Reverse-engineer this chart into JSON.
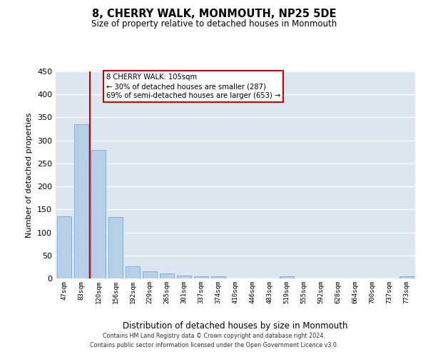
{
  "title": "8, CHERRY WALK, MONMOUTH, NP25 5DE",
  "subtitle": "Size of property relative to detached houses in Monmouth",
  "xlabel": "Distribution of detached houses by size in Monmouth",
  "ylabel": "Number of detached properties",
  "bar_labels": [
    "47sqm",
    "83sqm",
    "120sqm",
    "156sqm",
    "192sqm",
    "229sqm",
    "265sqm",
    "301sqm",
    "337sqm",
    "374sqm",
    "410sqm",
    "446sqm",
    "483sqm",
    "519sqm",
    "555sqm",
    "592sqm",
    "628sqm",
    "664sqm",
    "700sqm",
    "737sqm",
    "773sqm"
  ],
  "bar_heights": [
    135,
    335,
    280,
    133,
    27,
    16,
    11,
    6,
    5,
    4,
    0,
    0,
    0,
    4,
    0,
    0,
    0,
    0,
    0,
    0,
    4
  ],
  "bar_color": "#b8cfe8",
  "bar_edge_color": "#7aaad0",
  "vline_color": "#cc0000",
  "annotation_title": "8 CHERRY WALK: 105sqm",
  "annotation_line1": "← 30% of detached houses are smaller (287)",
  "annotation_line2": "69% of semi-detached houses are larger (653) →",
  "annotation_box_color": "#cc0000",
  "ylim": [
    0,
    450
  ],
  "yticks": [
    0,
    50,
    100,
    150,
    200,
    250,
    300,
    350,
    400,
    450
  ],
  "background_color": "#dce6f0",
  "footer_line1": "Contains HM Land Registry data © Crown copyright and database right 2024.",
  "footer_line2": "Contains public sector information licensed under the Open Government Licence v3.0."
}
